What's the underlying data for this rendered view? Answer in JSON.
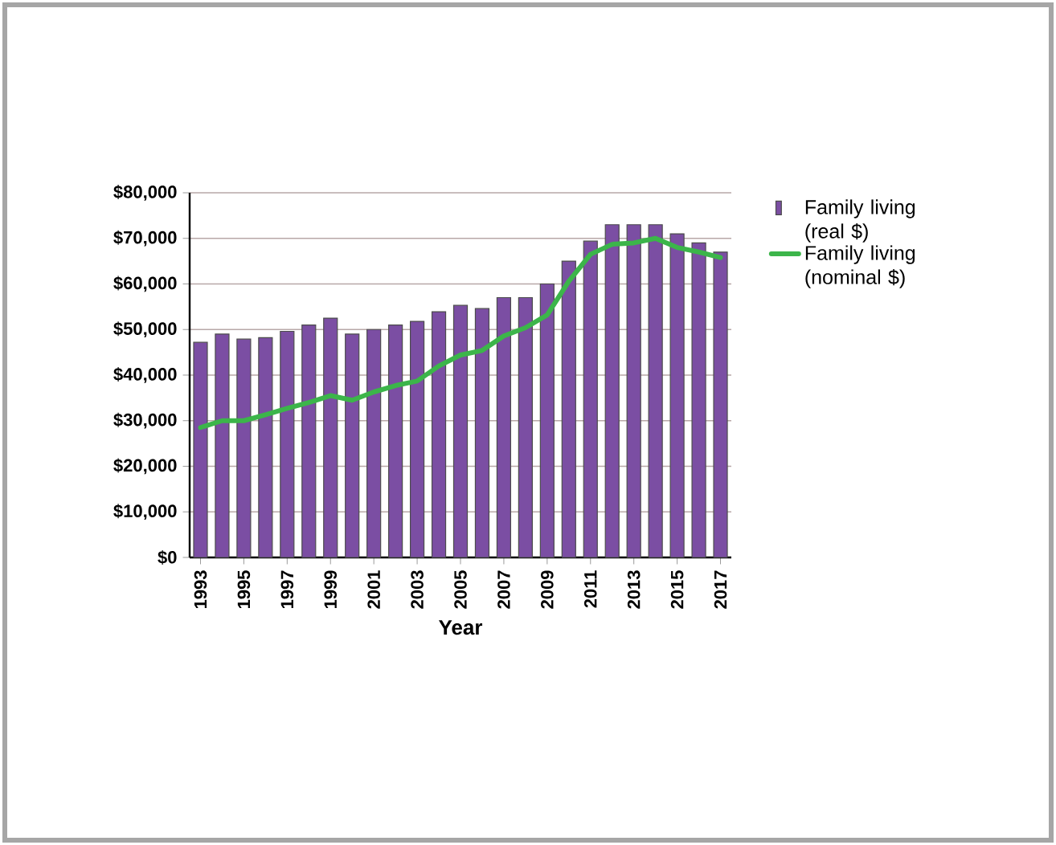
{
  "chart_data": {
    "type": "bar",
    "xlabel": "Year",
    "categories": [
      "1993",
      null,
      "1995",
      null,
      "1997",
      null,
      "1999",
      null,
      "2001",
      null,
      "2003",
      null,
      "2005",
      null,
      "2007",
      null,
      "2009",
      null,
      "2011",
      null,
      "2013",
      null,
      "2015",
      null,
      "2017"
    ],
    "series": [
      {
        "name": "Family living (real $)",
        "color": "#7b4ea3",
        "values": [
          47200,
          49000,
          47900,
          48200,
          49600,
          51000,
          52500,
          49000,
          50000,
          51000,
          51800,
          53900,
          55300,
          54600,
          57000,
          57000,
          60000,
          65000,
          69400,
          73000,
          73000,
          73000,
          71000,
          69000,
          67000
        ]
      },
      {
        "name": "Family living (nominal $)",
        "type": "line",
        "color": "#3cb54a",
        "values": [
          28500,
          30000,
          30000,
          31300,
          32700,
          34000,
          35500,
          34500,
          36300,
          37700,
          38700,
          42000,
          44400,
          45400,
          48600,
          50400,
          53200,
          60600,
          66500,
          68700,
          69000,
          70000,
          68000,
          67000,
          65800
        ]
      }
    ],
    "ylim": [
      0,
      80000
    ],
    "yticks": [
      {
        "value": 0,
        "label": "$0"
      },
      {
        "value": 10000,
        "label": "$10,000"
      },
      {
        "value": 20000,
        "label": "$20,000"
      },
      {
        "value": 30000,
        "label": "$30,000"
      },
      {
        "value": 40000,
        "label": "$40,000"
      },
      {
        "value": 50000,
        "label": "$50,000"
      },
      {
        "value": 60000,
        "label": "$60,000"
      },
      {
        "value": 70000,
        "label": "$70,000"
      },
      {
        "value": 80000,
        "label": "$80,000"
      }
    ],
    "grid": "y",
    "legend": "right",
    "line_style": "solid",
    "marker": "none"
  }
}
